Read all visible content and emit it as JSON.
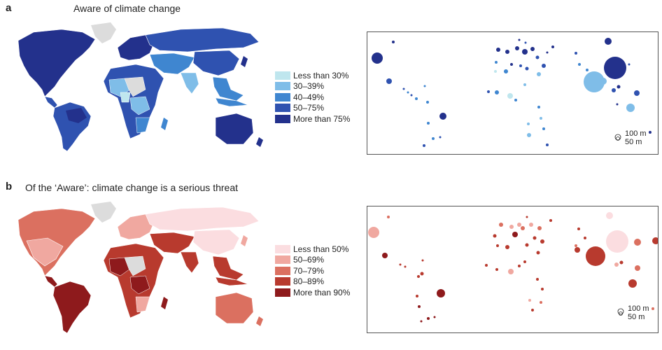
{
  "panel_a": {
    "letter": "a",
    "title": "Aware of climate change",
    "legend": [
      {
        "label": "Less than 30%",
        "color": "#bfe6ee"
      },
      {
        "label": "30–39%",
        "color": "#7fbde8"
      },
      {
        "label": "40–49%",
        "color": "#3f86d0"
      },
      {
        "label": "50–75%",
        "color": "#2f52b0"
      },
      {
        "label": "More than 75%",
        "color": "#23318c"
      }
    ],
    "scale": {
      "large": "100 m",
      "small": "50 m"
    }
  },
  "panel_b": {
    "letter": "b",
    "title": "Of the ‘Aware’: climate change is a serious threat",
    "legend": [
      {
        "label": "Less than 50%",
        "color": "#fbdde0"
      },
      {
        "label": "50–69%",
        "color": "#f0a8a0"
      },
      {
        "label": "70–79%",
        "color": "#db7060"
      },
      {
        "label": "80–89%",
        "color": "#b83a2e"
      },
      {
        "label": "More than 90%",
        "color": "#8e1a1c"
      }
    ],
    "scale": {
      "large": "100 m",
      "small": "50 m"
    }
  },
  "colors": {
    "no_data": "#dcdcdc",
    "border": "#555555"
  }
}
